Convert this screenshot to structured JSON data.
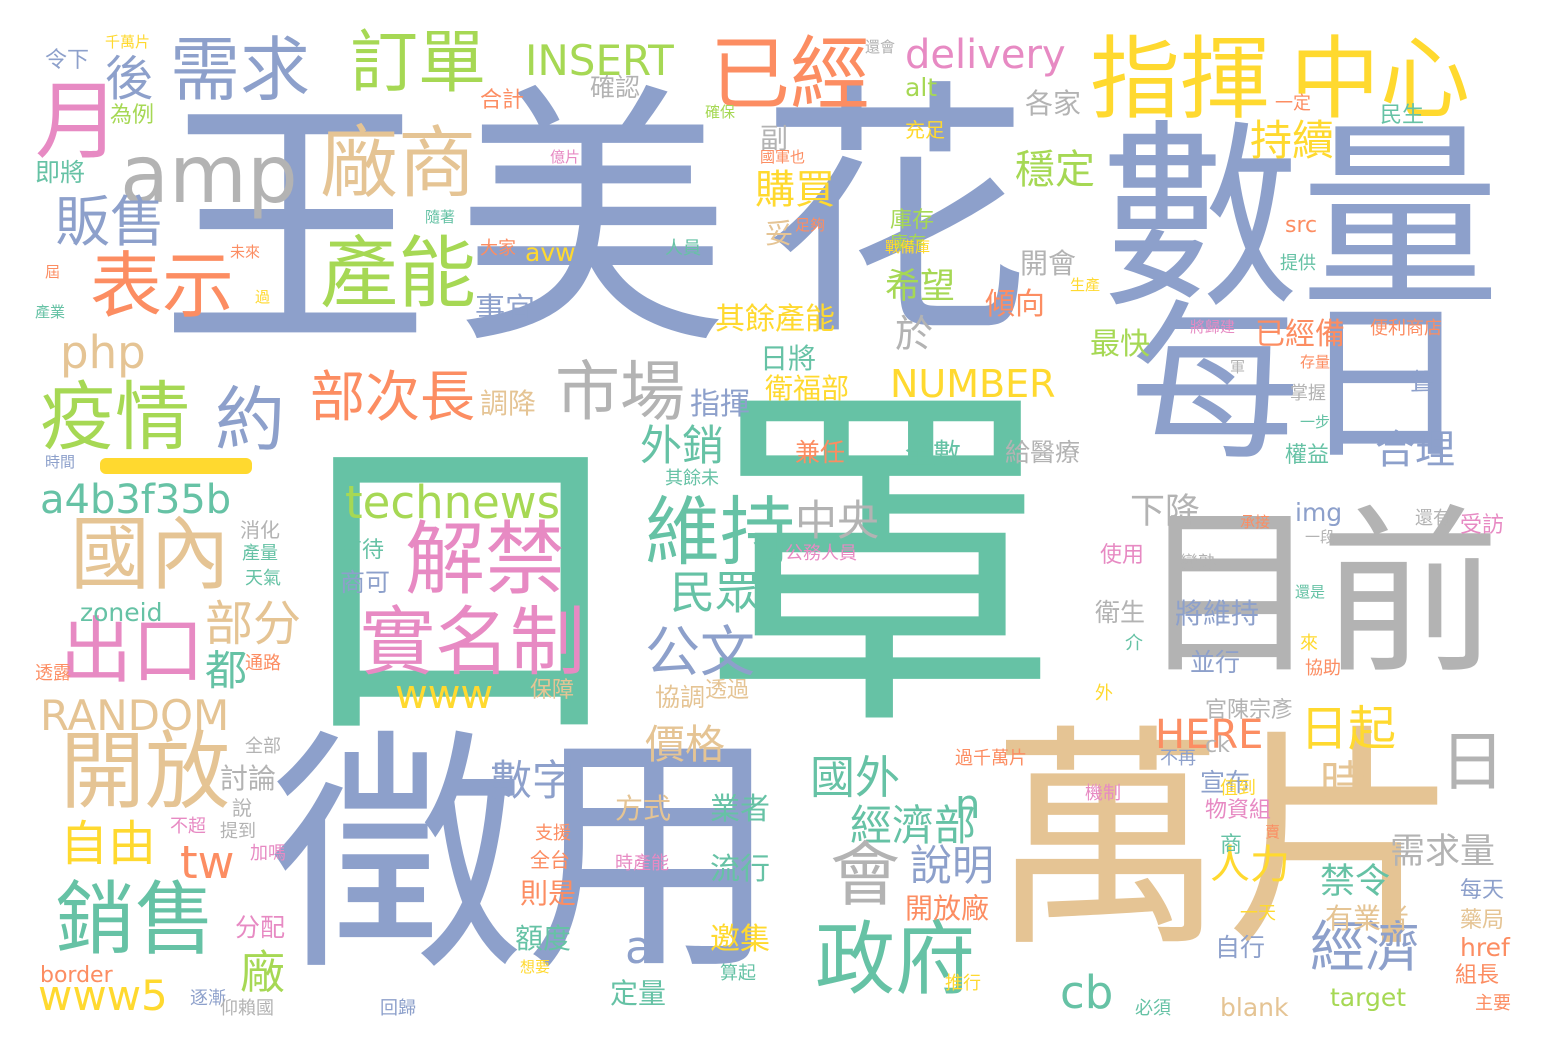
{
  "palette": {
    "blue": "#8da0cb",
    "teal": "#66c2a5",
    "tan": "#e5c494",
    "gray": "#b3b3b3",
    "green": "#a6d854",
    "yellow": "#ffd92f",
    "orange": "#fc8d62",
    "pink": "#e78ac3"
  },
  "words": [
    {
      "t": "王",
      "c": "blue"
    },
    {
      "t": "美",
      "c": "blue"
    },
    {
      "t": "花",
      "c": "blue"
    },
    {
      "t": "數量",
      "c": "blue"
    },
    {
      "t": "口",
      "c": "teal"
    },
    {
      "t": "罩",
      "c": "teal"
    },
    {
      "t": "每日",
      "c": "blue"
    },
    {
      "t": "目前",
      "c": "gray"
    },
    {
      "t": "徵用",
      "c": "blue"
    },
    {
      "t": "萬片",
      "c": "tan"
    },
    {
      "t": "指揮",
      "c": "yellow"
    },
    {
      "t": "中心",
      "c": "yellow"
    },
    {
      "t": "已經",
      "c": "orange"
    },
    {
      "t": "需求",
      "c": "blue"
    },
    {
      "t": "訂單",
      "c": "green"
    },
    {
      "t": "delivery",
      "c": "pink"
    },
    {
      "t": "INSERT",
      "c": "green"
    },
    {
      "t": "月",
      "c": "pink"
    },
    {
      "t": "後",
      "c": "blue"
    },
    {
      "t": "amp",
      "c": "gray"
    },
    {
      "t": "廠商",
      "c": "tan"
    },
    {
      "t": "販售",
      "c": "blue"
    },
    {
      "t": "表示",
      "c": "orange"
    },
    {
      "t": "產能",
      "c": "green"
    },
    {
      "t": "php",
      "c": "tan"
    },
    {
      "t": "疫情",
      "c": "green"
    },
    {
      "t": "約",
      "c": "blue"
    },
    {
      "t": "市場",
      "c": "gray"
    },
    {
      "t": "部次長",
      "c": "orange"
    },
    {
      "t": "國內",
      "c": "tan"
    },
    {
      "t": "a4b3f35b",
      "c": "teal"
    },
    {
      "t": "出口",
      "c": "pink"
    },
    {
      "t": "technews",
      "c": "green"
    },
    {
      "t": "解禁",
      "c": "pink"
    },
    {
      "t": "實名制",
      "c": "pink"
    },
    {
      "t": "www",
      "c": "yellow"
    },
    {
      "t": "維持",
      "c": "teal"
    },
    {
      "t": "開放",
      "c": "tan"
    },
    {
      "t": "RANDOM",
      "c": "tan"
    },
    {
      "t": "部分",
      "c": "tan"
    },
    {
      "t": "都",
      "c": "teal"
    },
    {
      "t": "自由",
      "c": "yellow"
    },
    {
      "t": "銷售",
      "c": "teal"
    },
    {
      "t": "www5",
      "c": "yellow"
    },
    {
      "t": "公文",
      "c": "blue"
    },
    {
      "t": "民眾",
      "c": "teal"
    },
    {
      "t": "價格",
      "c": "tan"
    },
    {
      "t": "數字",
      "c": "blue"
    },
    {
      "t": "國外",
      "c": "teal"
    },
    {
      "t": "經濟部",
      "c": "teal"
    },
    {
      "t": "會",
      "c": "gray"
    },
    {
      "t": "政府",
      "c": "teal"
    },
    {
      "t": "說明",
      "c": "blue"
    },
    {
      "t": "經濟",
      "c": "blue"
    },
    {
      "t": "人力",
      "c": "yellow"
    },
    {
      "t": "日起",
      "c": "yellow"
    },
    {
      "t": "HERE",
      "c": "orange"
    },
    {
      "t": "NUMBER",
      "c": "yellow"
    },
    {
      "t": "中央",
      "c": "gray"
    },
    {
      "t": "外銷",
      "c": "teal"
    },
    {
      "t": "購買",
      "c": "yellow"
    },
    {
      "t": "持續",
      "c": "yellow"
    },
    {
      "t": "穩定",
      "c": "green"
    },
    {
      "t": "合理",
      "c": "blue"
    },
    {
      "t": "需求量",
      "c": "gray"
    },
    {
      "t": "禁令",
      "c": "teal"
    },
    {
      "t": "日",
      "c": "gray"
    },
    {
      "t": "時",
      "c": "tan"
    },
    {
      "t": "cb",
      "c": "teal"
    },
    {
      "t": "tw",
      "c": "orange"
    },
    {
      "t": "a",
      "c": "blue"
    },
    {
      "t": "n",
      "c": "teal"
    },
    {
      "t": "廠",
      "c": "green"
    },
    {
      "t": "其餘產能",
      "c": "yellow"
    },
    {
      "t": "希望",
      "c": "green"
    },
    {
      "t": "庫存",
      "c": "green"
    },
    {
      "t": "下降",
      "c": "gray"
    },
    {
      "t": "確認",
      "c": "gray"
    },
    {
      "t": "合計",
      "c": "orange"
    },
    {
      "t": "alt",
      "c": "green"
    },
    {
      "t": "各家",
      "c": "gray"
    },
    {
      "t": "副",
      "c": "gray"
    },
    {
      "t": "充足",
      "c": "yellow"
    },
    {
      "t": "妥",
      "c": "tan"
    },
    {
      "t": "開會",
      "c": "gray"
    },
    {
      "t": "事宜",
      "c": "blue"
    },
    {
      "t": "最快",
      "c": "green"
    },
    {
      "t": "已經備",
      "c": "orange"
    },
    {
      "t": "傾向",
      "c": "orange"
    },
    {
      "t": "於",
      "c": "gray"
    },
    {
      "t": "日將",
      "c": "teal"
    },
    {
      "t": "指揮",
      "c": "blue"
    },
    {
      "t": "調降",
      "c": "tan"
    },
    {
      "t": "衛福部",
      "c": "yellow"
    },
    {
      "t": "兼任",
      "c": "orange"
    },
    {
      "t": "全數",
      "c": "teal"
    },
    {
      "t": "給醫療",
      "c": "gray"
    },
    {
      "t": "img",
      "c": "blue"
    },
    {
      "t": "src",
      "c": "orange"
    },
    {
      "t": "使用",
      "c": "pink"
    },
    {
      "t": "衛生",
      "c": "gray"
    },
    {
      "t": "將維持",
      "c": "blue"
    },
    {
      "t": "並行",
      "c": "blue"
    },
    {
      "t": "官陳宗彥",
      "c": "gray"
    },
    {
      "t": "宣布",
      "c": "blue"
    },
    {
      "t": "方式",
      "c": "tan"
    },
    {
      "t": "業者",
      "c": "teal"
    },
    {
      "t": "流行",
      "c": "teal"
    },
    {
      "t": "開放廠",
      "c": "orange"
    },
    {
      "t": "邀集",
      "c": "yellow"
    },
    {
      "t": "額度",
      "c": "teal"
    },
    {
      "t": "則是",
      "c": "orange"
    },
    {
      "t": "有業者",
      "c": "tan"
    },
    {
      "t": "自行",
      "c": "blue"
    },
    {
      "t": "組長",
      "c": "orange"
    },
    {
      "t": "每天",
      "c": "blue"
    },
    {
      "t": "藥局",
      "c": "tan"
    },
    {
      "t": "href",
      "c": "orange"
    },
    {
      "t": "target",
      "c": "green"
    },
    {
      "t": "blank",
      "c": "tan"
    },
    {
      "t": "定量",
      "c": "teal"
    },
    {
      "t": "border",
      "c": "orange"
    },
    {
      "t": "zoneid",
      "c": "teal"
    },
    {
      "t": "有待",
      "c": "teal"
    },
    {
      "t": "商可",
      "c": "blue"
    },
    {
      "t": "保障",
      "c": "tan"
    },
    {
      "t": "透過",
      "c": "tan"
    },
    {
      "t": "協調",
      "c": "tan"
    },
    {
      "t": "討論",
      "c": "gray"
    },
    {
      "t": "分配",
      "c": "pink"
    },
    {
      "t": "消化",
      "c": "gray"
    },
    {
      "t": "天氣",
      "c": "teal"
    },
    {
      "t": "即將",
      "c": "teal"
    },
    {
      "t": "為例",
      "c": "green"
    },
    {
      "t": "令下",
      "c": "blue"
    },
    {
      "t": "千萬片",
      "c": "yellow"
    },
    {
      "t": "avw",
      "c": "yellow"
    },
    {
      "t": "ck",
      "c": "gray"
    },
    {
      "t": "提供",
      "c": "teal"
    },
    {
      "t": "便利商店",
      "c": "orange"
    },
    {
      "t": "民生",
      "c": "teal"
    },
    {
      "t": "一定",
      "c": "orange"
    },
    {
      "t": "一聲",
      "c": "blue"
    },
    {
      "t": "掌握",
      "c": "gray"
    },
    {
      "t": "權益",
      "c": "teal"
    },
    {
      "t": "受訪",
      "c": "pink"
    },
    {
      "t": "還有",
      "c": "gray"
    },
    {
      "t": "承接",
      "c": "orange"
    },
    {
      "t": "一段",
      "c": "gray"
    },
    {
      "t": "還是",
      "c": "teal"
    },
    {
      "t": "來",
      "c": "yellow"
    },
    {
      "t": "協助",
      "c": "orange"
    },
    {
      "t": "介",
      "c": "teal"
    },
    {
      "t": "外",
      "c": "yellow"
    },
    {
      "t": "變熟",
      "c": "gray"
    },
    {
      "t": "過千萬片",
      "c": "orange"
    },
    {
      "t": "機制",
      "c": "pink"
    },
    {
      "t": "不再",
      "c": "blue"
    },
    {
      "t": "值到",
      "c": "yellow"
    },
    {
      "t": "物資組",
      "c": "pink"
    },
    {
      "t": "商",
      "c": "teal"
    },
    {
      "t": "賣",
      "c": "orange"
    },
    {
      "t": "一天",
      "c": "yellow"
    },
    {
      "t": "必須",
      "c": "teal"
    },
    {
      "t": "主要",
      "c": "orange"
    },
    {
      "t": "想要",
      "c": "yellow"
    },
    {
      "t": "推行",
      "c": "yellow"
    },
    {
      "t": "算起",
      "c": "teal"
    },
    {
      "t": "回歸",
      "c": "blue"
    },
    {
      "t": "支援",
      "c": "orange"
    },
    {
      "t": "全台",
      "c": "orange"
    },
    {
      "t": "時產能",
      "c": "pink"
    },
    {
      "t": "公務人員",
      "c": "pink"
    },
    {
      "t": "全部",
      "c": "gray"
    },
    {
      "t": "說",
      "c": "gray"
    },
    {
      "t": "不超",
      "c": "pink"
    },
    {
      "t": "提到",
      "c": "gray"
    },
    {
      "t": "加嗎",
      "c": "pink"
    },
    {
      "t": "逐漸",
      "c": "blue"
    },
    {
      "t": "仰賴國",
      "c": "gray"
    },
    {
      "t": "產量",
      "c": "teal"
    },
    {
      "t": "通路",
      "c": "orange"
    },
    {
      "t": "透露",
      "c": "orange"
    },
    {
      "t": "存量",
      "c": "orange"
    },
    {
      "t": "一步",
      "c": "teal"
    },
    {
      "t": "生產",
      "c": "yellow"
    },
    {
      "t": "將歸建",
      "c": "pink"
    },
    {
      "t": "軍",
      "c": "gray"
    },
    {
      "t": "庫存",
      "c": "green"
    },
    {
      "t": "戰備庫",
      "c": "yellow"
    },
    {
      "t": "足夠",
      "c": "orange"
    },
    {
      "t": "人員",
      "c": "teal"
    },
    {
      "t": "大家",
      "c": "orange"
    },
    {
      "t": "隨著",
      "c": "teal"
    },
    {
      "t": "億片",
      "c": "pink"
    },
    {
      "t": "確保",
      "c": "green"
    },
    {
      "t": "國軍也",
      "c": "orange"
    },
    {
      "t": "還會",
      "c": "gray"
    },
    {
      "t": "未來",
      "c": "orange"
    },
    {
      "t": "屆",
      "c": "orange"
    },
    {
      "t": "產業",
      "c": "teal"
    },
    {
      "t": "過",
      "c": "yellow"
    },
    {
      "t": "時間",
      "c": "blue"
    },
    {
      "t": "其餘未",
      "c": "teal"
    }
  ]
}
